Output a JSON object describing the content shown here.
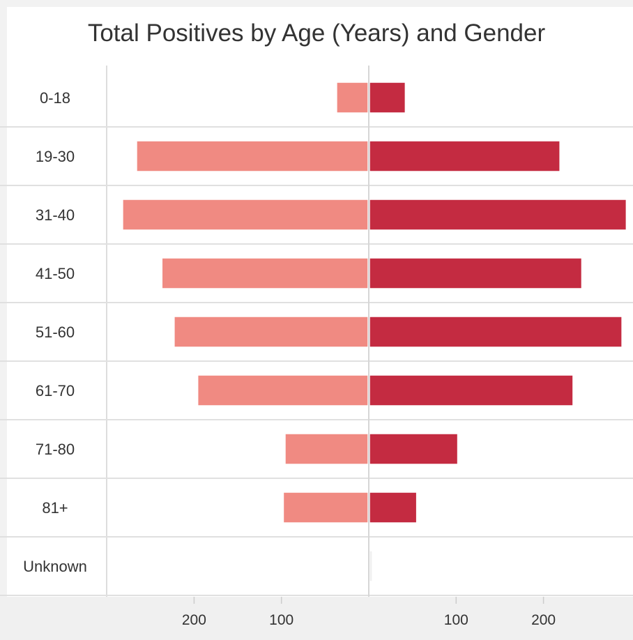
{
  "chart_data": {
    "type": "bar",
    "orientation": "horizontal-diverging",
    "title": "Total Positives by Age (Years) and Gender",
    "categories": [
      "0-18",
      "19-30",
      "31-40",
      "41-50",
      "51-60",
      "61-70",
      "71-80",
      "81+",
      "Unknown"
    ],
    "series": [
      {
        "values": [
          36,
          265,
          281,
          236,
          222,
          195,
          95,
          97,
          0
        ],
        "color": "#f08a82",
        "side": "left"
      },
      {
        "values": [
          41,
          218,
          294,
          243,
          289,
          233,
          101,
          54,
          2
        ],
        "color": "#c42b41",
        "side": "right"
      }
    ],
    "x_ticks_left": [
      200,
      100
    ],
    "x_ticks_right": [
      100,
      200
    ],
    "xlim": [
      -300,
      300
    ],
    "grid": true
  }
}
